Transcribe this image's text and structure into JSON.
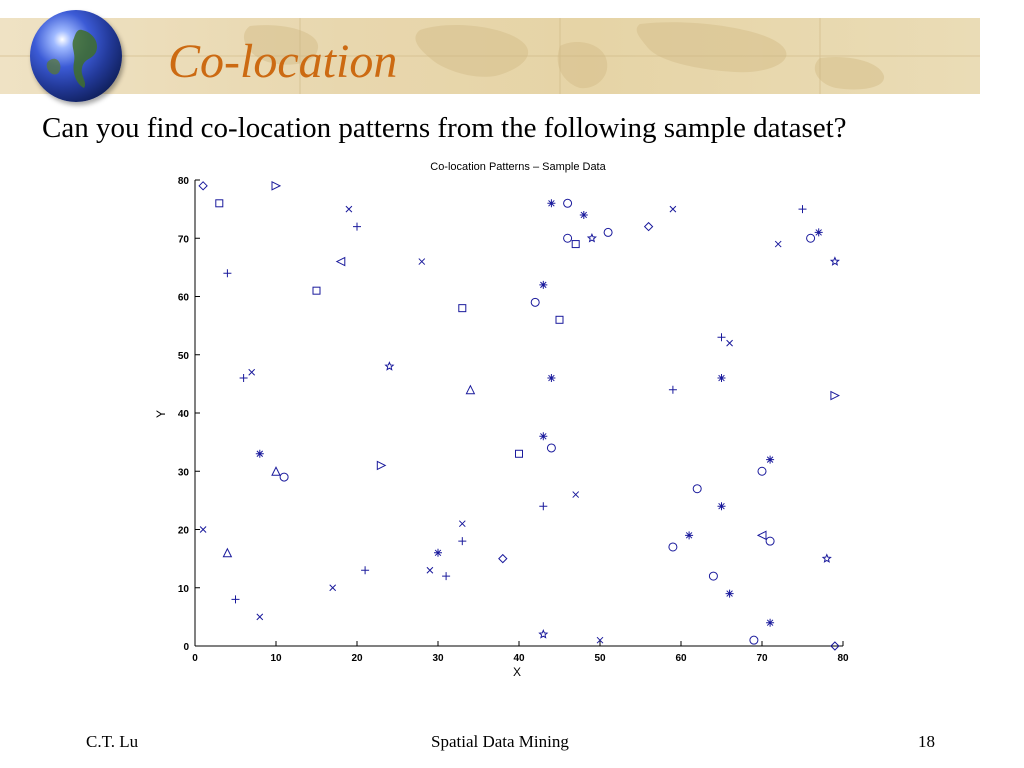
{
  "slide": {
    "title": "Co-location",
    "question": "Can you find co-location patterns from the following sample dataset?"
  },
  "footer": {
    "author": "C.T. Lu",
    "course": "Spatial Data Mining",
    "page": "18"
  },
  "colors": {
    "title": "#cc6a12",
    "banner": "#e8d7ae",
    "marker": "#1a1a9c"
  },
  "icons": {
    "globe": "globe-icon"
  },
  "chart_data": {
    "type": "scatter",
    "title": "Co-location Patterns – Sample Data",
    "xlabel": "X",
    "ylabel": "Y",
    "xlim": [
      0,
      80
    ],
    "ylim": [
      0,
      80
    ],
    "xticks": [
      0,
      10,
      20,
      30,
      40,
      50,
      60,
      70,
      80
    ],
    "yticks": [
      0,
      10,
      20,
      30,
      40,
      50,
      60,
      70,
      80
    ],
    "grid": false,
    "series": [
      {
        "marker": "diamond",
        "points": [
          [
            1,
            79
          ],
          [
            56,
            72
          ],
          [
            38,
            15
          ],
          [
            79,
            0
          ]
        ]
      },
      {
        "marker": "triangle-right",
        "points": [
          [
            10,
            79
          ],
          [
            23,
            31
          ],
          [
            79,
            43
          ]
        ]
      },
      {
        "marker": "square",
        "points": [
          [
            3,
            76
          ],
          [
            15,
            61
          ],
          [
            33,
            58
          ],
          [
            45,
            56
          ],
          [
            47,
            69
          ],
          [
            40,
            33
          ]
        ]
      },
      {
        "marker": "x",
        "points": [
          [
            19,
            75
          ],
          [
            28,
            66
          ],
          [
            7,
            47
          ],
          [
            1,
            20
          ],
          [
            8,
            5
          ],
          [
            17,
            10
          ],
          [
            29,
            13
          ],
          [
            33,
            21
          ],
          [
            47,
            26
          ],
          [
            50,
            1
          ],
          [
            59,
            75
          ],
          [
            66,
            52
          ],
          [
            72,
            69
          ]
        ]
      },
      {
        "marker": "plus",
        "points": [
          [
            20,
            72
          ],
          [
            4,
            64
          ],
          [
            6,
            46
          ],
          [
            5,
            8
          ],
          [
            21,
            13
          ],
          [
            31,
            12
          ],
          [
            33,
            18
          ],
          [
            43,
            24
          ],
          [
            59,
            44
          ],
          [
            65,
            53
          ],
          [
            75,
            75
          ]
        ]
      },
      {
        "marker": "triangle-left",
        "points": [
          [
            18,
            66
          ],
          [
            70,
            19
          ]
        ]
      },
      {
        "marker": "star",
        "points": [
          [
            24,
            48
          ],
          [
            49,
            70
          ],
          [
            79,
            66
          ],
          [
            78,
            15
          ],
          [
            43,
            2
          ]
        ]
      },
      {
        "marker": "asterisk",
        "points": [
          [
            44,
            76
          ],
          [
            48,
            74
          ],
          [
            43,
            62
          ],
          [
            44,
            46
          ],
          [
            43,
            36
          ],
          [
            8,
            33
          ],
          [
            30,
            16
          ],
          [
            61,
            19
          ],
          [
            65,
            46
          ],
          [
            65,
            24
          ],
          [
            66,
            9
          ],
          [
            71,
            32
          ],
          [
            71,
            4
          ],
          [
            77,
            71
          ]
        ]
      },
      {
        "marker": "circle",
        "points": [
          [
            46,
            76
          ],
          [
            46,
            70
          ],
          [
            51,
            71
          ],
          [
            42,
            59
          ],
          [
            44,
            34
          ],
          [
            11,
            29
          ],
          [
            59,
            17
          ],
          [
            62,
            27
          ],
          [
            64,
            12
          ],
          [
            69,
            1
          ],
          [
            70,
            30
          ],
          [
            71,
            18
          ],
          [
            76,
            70
          ]
        ]
      },
      {
        "marker": "triangle-up",
        "points": [
          [
            34,
            44
          ],
          [
            10,
            30
          ],
          [
            4,
            16
          ]
        ]
      }
    ]
  }
}
